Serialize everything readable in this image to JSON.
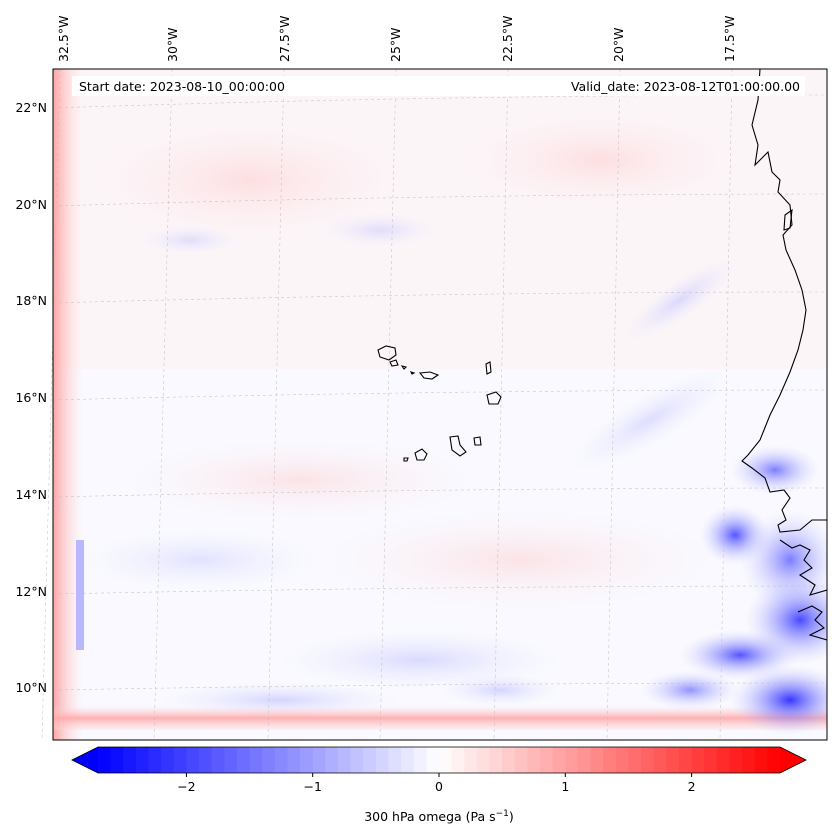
{
  "map": {
    "header": {
      "start_date": "Start date: 2023-08-10_00:00:00",
      "valid_date": "Valid_date: 2023-08-12T01:00:00.00"
    },
    "lon_labels": [
      "32.5°W",
      "30°W",
      "27.5°W",
      "25°W",
      "22.5°W",
      "20°W",
      "17.5°W"
    ],
    "lat_labels": [
      "22°N",
      "20°N",
      "18°N",
      "16°N",
      "14°N",
      "12°N",
      "10°N"
    ],
    "field": "300 hPa omega",
    "region": "Cabo Verde and West African coast"
  },
  "colorbar": {
    "label": "300 hPa omega (Pa s",
    "label_exp": "−1",
    "label_close": ")",
    "tick_labels": [
      "−2",
      "−1",
      "0",
      "1",
      "2"
    ],
    "vmin": -2.7,
    "vmax": 2.7,
    "colors": {
      "neg": "#0000ff",
      "mid": "#ffffff",
      "pos": "#ff0000"
    }
  }
}
